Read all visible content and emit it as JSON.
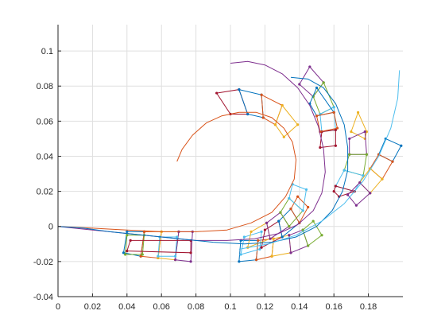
{
  "chart_data": {
    "type": "line",
    "title": "",
    "xlabel": "",
    "ylabel": "",
    "xlim": [
      0,
      0.2
    ],
    "ylim": [
      -0.04,
      0.115
    ],
    "grid": true,
    "x_ticks": [
      "0",
      "0.02",
      "0.04",
      "0.06",
      "0.08",
      "0.1",
      "0.12",
      "0.14",
      "0.16",
      "0.18"
    ],
    "x_tick_values": [
      0,
      0.02,
      0.04,
      0.06,
      0.08,
      0.1,
      0.12,
      0.14,
      0.16,
      0.18
    ],
    "y_ticks": [
      "-0.04",
      "-0.02",
      "0",
      "0.02",
      "0.04",
      "0.06",
      "0.08",
      "0.1"
    ],
    "y_tick_values": [
      -0.04,
      -0.02,
      0,
      0.02,
      0.04,
      0.06,
      0.08,
      0.1
    ],
    "series": [
      {
        "color": "#D95319",
        "x": [
          0.069,
          0.072,
          0.078,
          0.086,
          0.095,
          0.105,
          0.115,
          0.124,
          0.131,
          0.136,
          0.138,
          0.137,
          0.132,
          0.124,
          0.112,
          0.098,
          0.08,
          0.06,
          0.04,
          0.02,
          0.0
        ],
        "y": [
          0.037,
          0.044,
          0.052,
          0.059,
          0.063,
          0.065,
          0.065,
          0.062,
          0.056,
          0.048,
          0.038,
          0.027,
          0.017,
          0.008,
          0.002,
          -0.002,
          -0.003,
          -0.003,
          -0.002,
          -0.001,
          0.0
        ]
      },
      {
        "color": "#7E2F8E",
        "x": [
          0.1,
          0.11,
          0.12,
          0.13,
          0.139,
          0.146,
          0.151,
          0.154,
          0.155,
          0.153,
          0.148,
          0.139,
          0.128,
          0.114,
          0.098,
          0.08,
          0.06,
          0.04,
          0.02,
          0.0
        ],
        "y": [
          0.093,
          0.094,
          0.092,
          0.087,
          0.079,
          0.069,
          0.057,
          0.044,
          0.031,
          0.019,
          0.009,
          0.001,
          -0.004,
          -0.007,
          -0.008,
          -0.008,
          -0.006,
          -0.004,
          -0.002,
          0.0
        ]
      },
      {
        "color": "#0072BD",
        "x": [
          0.135,
          0.145,
          0.154,
          0.161,
          0.166,
          0.168,
          0.168,
          0.165,
          0.159,
          0.15,
          0.138,
          0.124,
          0.108,
          0.09,
          0.07,
          0.05,
          0.03,
          0.015,
          0.0
        ],
        "y": [
          0.085,
          0.084,
          0.079,
          0.07,
          0.058,
          0.045,
          0.032,
          0.02,
          0.009,
          0.0,
          -0.006,
          -0.009,
          -0.01,
          -0.009,
          -0.007,
          -0.005,
          -0.003,
          -0.001,
          0.0
        ]
      },
      {
        "color": "#4DBEEE",
        "x": [
          0.198,
          0.197,
          0.193,
          0.186,
          0.177,
          0.166,
          0.153,
          0.138,
          0.122,
          0.105
        ],
        "y": [
          0.089,
          0.073,
          0.056,
          0.04,
          0.026,
          0.013,
          0.003,
          -0.005,
          -0.01,
          -0.013
        ]
      }
    ],
    "frame_colors": [
      "#0072BD",
      "#D95319",
      "#EDB120",
      "#7E2F8E",
      "#77AC30",
      "#4DBEEE",
      "#A2142F"
    ],
    "frames": [
      [
        [
          0.038,
          -0.015
        ],
        [
          0.04,
          -0.003
        ],
        [
          0.05,
          -0.003
        ],
        [
          0.048,
          -0.017
        ]
      ],
      [
        [
          0.048,
          -0.017
        ],
        [
          0.05,
          -0.003
        ],
        [
          0.06,
          -0.003
        ],
        [
          0.058,
          -0.018
        ]
      ],
      [
        [
          0.058,
          -0.018
        ],
        [
          0.06,
          -0.003
        ],
        [
          0.07,
          -0.003
        ],
        [
          0.068,
          -0.019
        ]
      ],
      [
        [
          0.068,
          -0.019
        ],
        [
          0.07,
          -0.003
        ],
        [
          0.078,
          -0.003
        ],
        [
          0.077,
          -0.02
        ]
      ],
      [
        [
          0.039,
          -0.016
        ],
        [
          0.04,
          -0.005
        ],
        [
          0.05,
          -0.005
        ],
        [
          0.049,
          -0.016
        ]
      ],
      [
        [
          0.058,
          -0.017
        ],
        [
          0.059,
          -0.006
        ],
        [
          0.069,
          -0.006
        ],
        [
          0.068,
          -0.017
        ]
      ],
      [
        [
          0.04,
          -0.014
        ],
        [
          0.042,
          -0.008
        ],
        [
          0.077,
          -0.008
        ],
        [
          0.077,
          -0.015
        ]
      ],
      [
        [
          0.105,
          -0.02
        ],
        [
          0.106,
          -0.008
        ],
        [
          0.116,
          -0.008
        ],
        [
          0.115,
          -0.019
        ]
      ],
      [
        [
          0.115,
          -0.019
        ],
        [
          0.116,
          -0.008
        ],
        [
          0.125,
          -0.007
        ],
        [
          0.124,
          -0.017
        ]
      ],
      [
        [
          0.124,
          -0.017
        ],
        [
          0.125,
          -0.007
        ],
        [
          0.134,
          -0.005
        ],
        [
          0.135,
          -0.015
        ]
      ],
      [
        [
          0.135,
          -0.015
        ],
        [
          0.134,
          -0.005
        ],
        [
          0.142,
          -0.002
        ],
        [
          0.145,
          -0.011
        ]
      ],
      [
        [
          0.145,
          -0.011
        ],
        [
          0.142,
          -0.002
        ],
        [
          0.148,
          0.003
        ],
        [
          0.153,
          -0.005
        ]
      ],
      [
        [
          0.106,
          -0.016
        ],
        [
          0.108,
          -0.006
        ],
        [
          0.118,
          -0.003
        ],
        [
          0.117,
          -0.013
        ]
      ],
      [
        [
          0.118,
          -0.012
        ],
        [
          0.12,
          -0.002
        ],
        [
          0.128,
          0.003
        ],
        [
          0.13,
          -0.006
        ]
      ],
      [
        [
          0.13,
          -0.006
        ],
        [
          0.128,
          0.003
        ],
        [
          0.135,
          0.01
        ],
        [
          0.14,
          0.002
        ]
      ],
      [
        [
          0.14,
          0.002
        ],
        [
          0.135,
          0.01
        ],
        [
          0.139,
          0.017
        ],
        [
          0.145,
          0.011
        ]
      ],
      [
        [
          0.11,
          -0.012
        ],
        [
          0.112,
          -0.003
        ],
        [
          0.121,
          0.002
        ],
        [
          0.123,
          -0.007
        ]
      ],
      [
        [
          0.123,
          -0.007
        ],
        [
          0.121,
          0.002
        ],
        [
          0.129,
          0.008
        ],
        [
          0.134,
          0.0
        ]
      ],
      [
        [
          0.134,
          0.0
        ],
        [
          0.129,
          0.008
        ],
        [
          0.134,
          0.016
        ],
        [
          0.142,
          0.009
        ]
      ],
      [
        [
          0.142,
          0.009
        ],
        [
          0.134,
          0.016
        ],
        [
          0.136,
          0.024
        ],
        [
          0.144,
          0.021
        ]
      ],
      [
        [
          0.092,
          0.076
        ],
        [
          0.1,
          0.064
        ],
        [
          0.11,
          0.064
        ],
        [
          0.105,
          0.078
        ]
      ],
      [
        [
          0.105,
          0.078
        ],
        [
          0.11,
          0.064
        ],
        [
          0.119,
          0.062
        ],
        [
          0.118,
          0.075
        ]
      ],
      [
        [
          0.118,
          0.075
        ],
        [
          0.119,
          0.062
        ],
        [
          0.126,
          0.058
        ],
        [
          0.13,
          0.069
        ]
      ],
      [
        [
          0.13,
          0.069
        ],
        [
          0.126,
          0.058
        ],
        [
          0.131,
          0.051
        ],
        [
          0.139,
          0.058
        ]
      ],
      [
        [
          0.146,
          0.091
        ],
        [
          0.14,
          0.081
        ],
        [
          0.148,
          0.074
        ],
        [
          0.154,
          0.082
        ]
      ],
      [
        [
          0.154,
          0.082
        ],
        [
          0.148,
          0.074
        ],
        [
          0.152,
          0.064
        ],
        [
          0.16,
          0.068
        ]
      ],
      [
        [
          0.16,
          0.068
        ],
        [
          0.152,
          0.064
        ],
        [
          0.153,
          0.054
        ],
        [
          0.161,
          0.055
        ]
      ],
      [
        [
          0.161,
          0.055
        ],
        [
          0.153,
          0.054
        ],
        [
          0.152,
          0.045
        ],
        [
          0.161,
          0.046
        ]
      ],
      [
        [
          0.15,
          0.079
        ],
        [
          0.146,
          0.07
        ],
        [
          0.15,
          0.063
        ],
        [
          0.16,
          0.065
        ]
      ],
      [
        [
          0.16,
          0.065
        ],
        [
          0.15,
          0.063
        ],
        [
          0.152,
          0.054
        ],
        [
          0.162,
          0.056
        ]
      ],
      [
        [
          0.174,
          0.065
        ],
        [
          0.17,
          0.054
        ],
        [
          0.178,
          0.05
        ],
        [
          0.179,
          0.054
        ]
      ],
      [
        [
          0.178,
          0.054
        ],
        [
          0.169,
          0.05
        ],
        [
          0.169,
          0.041
        ],
        [
          0.179,
          0.041
        ]
      ],
      [
        [
          0.179,
          0.041
        ],
        [
          0.169,
          0.041
        ],
        [
          0.166,
          0.032
        ],
        [
          0.177,
          0.029
        ]
      ],
      [
        [
          0.177,
          0.029
        ],
        [
          0.166,
          0.032
        ],
        [
          0.161,
          0.023
        ],
        [
          0.172,
          0.02
        ]
      ],
      [
        [
          0.172,
          0.02
        ],
        [
          0.161,
          0.023
        ],
        [
          0.16,
          0.02
        ],
        [
          0.163,
          0.017
        ]
      ],
      [
        [
          0.199,
          0.046
        ],
        [
          0.19,
          0.05
        ],
        [
          0.186,
          0.041
        ],
        [
          0.194,
          0.037
        ]
      ],
      [
        [
          0.194,
          0.037
        ],
        [
          0.186,
          0.041
        ],
        [
          0.181,
          0.033
        ],
        [
          0.188,
          0.027
        ]
      ],
      [
        [
          0.188,
          0.027
        ],
        [
          0.181,
          0.033
        ],
        [
          0.175,
          0.025
        ],
        [
          0.181,
          0.019
        ]
      ],
      [
        [
          0.181,
          0.019
        ],
        [
          0.175,
          0.025
        ],
        [
          0.168,
          0.018
        ],
        [
          0.173,
          0.012
        ]
      ]
    ]
  }
}
